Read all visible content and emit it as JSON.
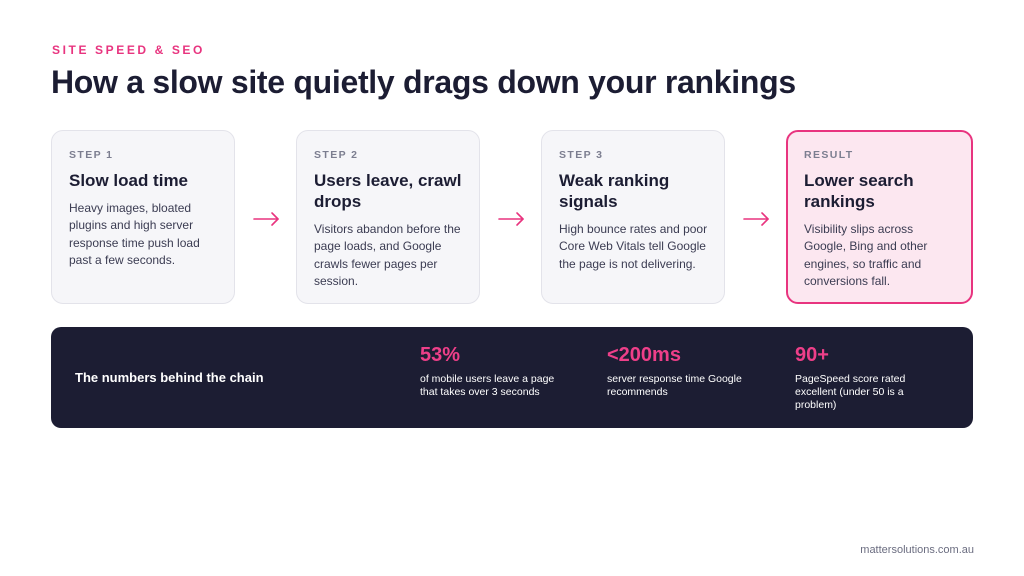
{
  "header": {
    "eyebrow": "SITE SPEED & SEO",
    "title": "How a slow site quietly drags down your rankings"
  },
  "steps": [
    {
      "label": "STEP 1",
      "heading": "Slow load time",
      "body": "Heavy images, bloated plugins and high server response time push load past a few seconds."
    },
    {
      "label": "STEP 2",
      "heading": "Users leave, crawl drops",
      "body": "Visitors abandon before the page loads, and Google crawls fewer pages per session."
    },
    {
      "label": "STEP 3",
      "heading": "Weak ranking signals",
      "body": "High bounce rates and poor Core Web Vitals tell Google the page is not delivering."
    },
    {
      "label": "RESULT",
      "heading": "Lower search rankings",
      "body": "Visibility slips across Google, Bing and other engines, so traffic and conversions fall."
    }
  ],
  "stats": {
    "title": "The numbers behind the chain",
    "items": [
      {
        "value": "53%",
        "desc": "of mobile users leave a page that takes over 3 seconds"
      },
      {
        "value": "<200ms",
        "desc": "server response time Google recommends"
      },
      {
        "value": "90+",
        "desc": "PageSpeed score rated excellent (under 50 is a problem)"
      }
    ]
  },
  "footer": {
    "site": "mattersolutions.com.au"
  },
  "colors": {
    "accent": "#e8347f",
    "navy": "#1c1d33",
    "card_bg": "#f6f6f9",
    "result_bg": "#fce7f0"
  },
  "icons": {
    "connector": "arrow-right-icon"
  }
}
